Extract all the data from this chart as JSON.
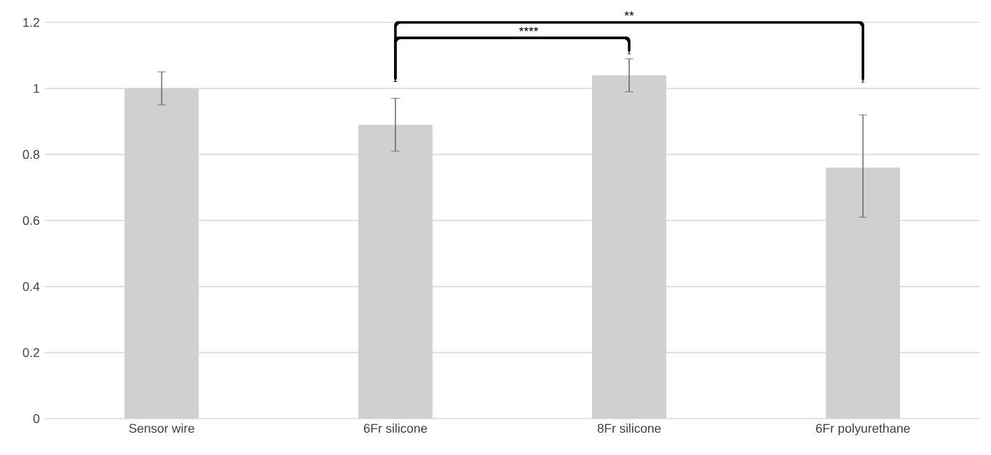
{
  "chart_data": {
    "type": "bar",
    "categories": [
      "Sensor wire",
      "6Fr silicone",
      "8Fr silicone",
      "6Fr polyurethane"
    ],
    "values": [
      1.0,
      0.89,
      1.04,
      0.76
    ],
    "errors": [
      [
        0.95,
        1.05
      ],
      [
        0.81,
        0.97
      ],
      [
        0.99,
        1.09
      ],
      [
        0.61,
        0.92
      ]
    ],
    "color": "#d0d0d0",
    "ylim": [
      0,
      1.2
    ],
    "yticks": [
      0,
      0.2,
      0.4,
      0.6,
      0.8,
      1,
      1.2
    ],
    "grid": "y",
    "annotations": [
      "****",
      "**"
    ]
  }
}
